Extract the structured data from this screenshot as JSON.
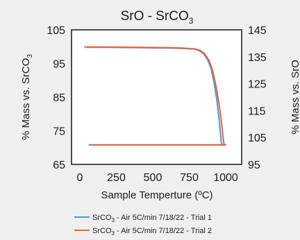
{
  "chart_data": {
    "type": "line",
    "title": "SrO - SrCO",
    "title_subscript": "3",
    "xlabel": "Sample Temperture (ºC)",
    "ylabel": "% Mass vs. SrCO",
    "ylabel_subscript": "3",
    "y2label": "% Mass vs. SrO",
    "xlim": [
      0,
      1000
    ],
    "ylim": [
      65,
      105
    ],
    "y2lim": [
      95,
      145
    ],
    "xticks": [
      "0",
      "250",
      "500",
      "750",
      "1000"
    ],
    "yticks": [
      "65",
      "75",
      "85",
      "95",
      "105"
    ],
    "y2ticks": [
      "95",
      "105",
      "115",
      "125",
      "135",
      "145"
    ],
    "grid": false,
    "legend_position": "bottom",
    "series": [
      {
        "name": "SrCO3 - Air 5C/min 7/18/22 - Trial 1",
        "legend_prefix": "SrCO",
        "legend_sub": "3",
        "legend_suffix": " - Air 5C/min 7/18/22 - Trial 1",
        "color": "#3a9ad9",
        "x": [
          45,
          200,
          400,
          600,
          700,
          780,
          820,
          850,
          875,
          900,
          920,
          940,
          955,
          965,
          970,
          975,
          985,
          1000,
          700,
          400,
          60
        ],
        "y": [
          99.8,
          99.8,
          99.7,
          99.6,
          99.5,
          99.3,
          98.8,
          97.8,
          96.2,
          93.5,
          89.5,
          84.0,
          78.5,
          74.0,
          71.5,
          70.8,
          70.8,
          70.8,
          70.8,
          70.8,
          70.8
        ]
      },
      {
        "name": "SrCO3 - Air 5C/min 7/18/22 - Trial 2",
        "legend_prefix": "SrCO",
        "legend_sub": "3",
        "legend_suffix": " - Air 5C/min 7/18/22 - Trial 2",
        "color": "#e8633a",
        "x": [
          30,
          200,
          400,
          600,
          700,
          780,
          825,
          855,
          885,
          910,
          935,
          955,
          970,
          980,
          985,
          988,
          990,
          995,
          1000,
          700,
          400,
          75
        ],
        "y": [
          99.9,
          99.9,
          99.8,
          99.7,
          99.6,
          99.4,
          98.9,
          97.9,
          96.0,
          93.0,
          88.0,
          83.0,
          78.0,
          74.0,
          72.0,
          71.0,
          70.8,
          70.8,
          70.8,
          70.8,
          70.8,
          70.8
        ]
      }
    ]
  }
}
